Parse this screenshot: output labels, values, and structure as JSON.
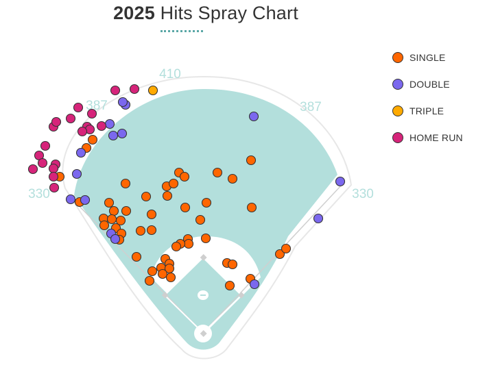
{
  "title": {
    "year": "2025",
    "text": "Hits Spray Chart"
  },
  "distance_labels": [
    "410",
    "387",
    "387",
    "330",
    "330"
  ],
  "legend": [
    {
      "label": "SINGLE",
      "color": "#ff6600"
    },
    {
      "label": "DOUBLE",
      "color": "#7b68ee"
    },
    {
      "label": "TRIPLE",
      "color": "#ffaa00"
    },
    {
      "label": "HOME RUN",
      "color": "#d6247a"
    }
  ],
  "chart_data": {
    "type": "scatter",
    "title": "2025 Hits Spray Chart",
    "series": [
      {
        "name": "SINGLE",
        "color": "#ff6600",
        "points": [
          [
            87,
            258
          ],
          [
            116,
            295
          ],
          [
            135,
            204
          ],
          [
            126,
            216
          ],
          [
            183,
            268
          ],
          [
            159,
            296
          ],
          [
            166,
            308
          ],
          [
            151,
            319
          ],
          [
            163,
            320
          ],
          [
            176,
            322
          ],
          [
            152,
            329
          ],
          [
            169,
            333
          ],
          [
            177,
            341
          ],
          [
            174,
            350
          ],
          [
            184,
            308
          ],
          [
            213,
            287
          ],
          [
            221,
            313
          ],
          [
            221,
            336
          ],
          [
            205,
            337
          ],
          [
            199,
            375
          ],
          [
            243,
            272
          ],
          [
            244,
            286
          ],
          [
            253,
            268
          ],
          [
            261,
            252
          ],
          [
            269,
            258
          ],
          [
            270,
            303
          ],
          [
            301,
            296
          ],
          [
            317,
            252
          ],
          [
            339,
            261
          ],
          [
            366,
            234
          ],
          [
            367,
            303
          ],
          [
            292,
            321
          ],
          [
            300,
            348
          ],
          [
            274,
            349
          ],
          [
            275,
            356
          ],
          [
            263,
            356
          ],
          [
            257,
            360
          ],
          [
            241,
            378
          ],
          [
            235,
            391
          ],
          [
            247,
            385
          ],
          [
            247,
            392
          ],
          [
            222,
            396
          ],
          [
            237,
            400
          ],
          [
            249,
            405
          ],
          [
            218,
            410
          ],
          [
            331,
            384
          ],
          [
            339,
            386
          ],
          [
            335,
            417
          ],
          [
            365,
            407
          ],
          [
            408,
            371
          ],
          [
            417,
            363
          ]
        ]
      },
      {
        "name": "DOUBLE",
        "color": "#7b68ee",
        "points": [
          [
            112,
            254
          ],
          [
            103,
            291
          ],
          [
            124,
            292
          ],
          [
            118,
            223
          ],
          [
            165,
            198
          ],
          [
            178,
            195
          ],
          [
            160,
            181
          ],
          [
            183,
            153
          ],
          [
            179,
            149
          ],
          [
            370,
            170
          ],
          [
            496,
            265
          ],
          [
            464,
            319
          ],
          [
            162,
            341
          ],
          [
            168,
            349
          ],
          [
            371,
            415
          ]
        ]
      },
      {
        "name": "TRIPLE",
        "color": "#ffaa00",
        "points": [
          [
            223,
            132
          ]
        ]
      },
      {
        "name": "HOME RUN",
        "color": "#d6247a",
        "points": [
          [
            168,
            132
          ],
          [
            196,
            130
          ],
          [
            114,
            157
          ],
          [
            78,
            185
          ],
          [
            82,
            178
          ],
          [
            103,
            173
          ],
          [
            134,
            166
          ],
          [
            127,
            185
          ],
          [
            131,
            189
          ],
          [
            148,
            184
          ],
          [
            120,
            192
          ],
          [
            66,
            213
          ],
          [
            57,
            227
          ],
          [
            81,
            240
          ],
          [
            78,
            246
          ],
          [
            62,
            238
          ],
          [
            48,
            247
          ],
          [
            78,
            258
          ],
          [
            79,
            274
          ]
        ]
      }
    ]
  }
}
